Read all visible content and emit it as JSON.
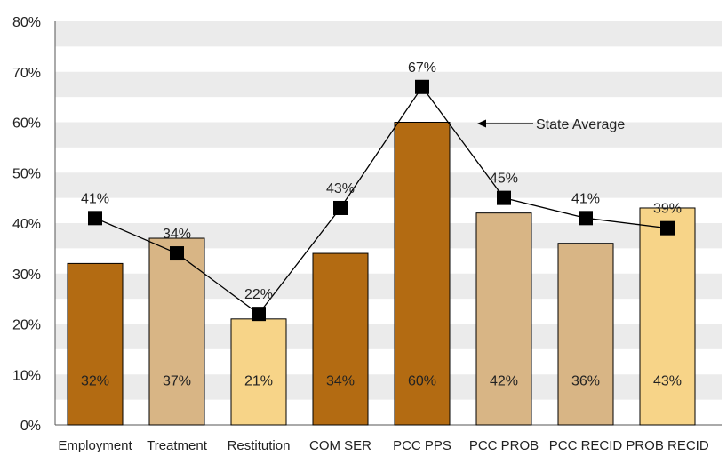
{
  "chart_data": {
    "type": "bar",
    "categories": [
      "Employment",
      "Treatment",
      "Restitution",
      "COM SER",
      "PCC PPS",
      "PCC PROB",
      "PCC RECID",
      "PROB RECID"
    ],
    "series": [
      {
        "type": "bar",
        "values": [
          32,
          37,
          21,
          34,
          60,
          42,
          36,
          43
        ],
        "labels": [
          "32%",
          "37%",
          "21%",
          "34%",
          "60%",
          "42%",
          "36%",
          "43%"
        ]
      },
      {
        "name": "State Average",
        "type": "line",
        "values": [
          41,
          34,
          22,
          43,
          67,
          45,
          41,
          39
        ],
        "labels": [
          "41%",
          "34%",
          "22%",
          "43%",
          "67%",
          "45%",
          "41%",
          "39%"
        ]
      }
    ],
    "bar_colors": [
      "#b36b12",
      "#d8b585",
      "#f7d488",
      "#b36b12",
      "#b36b12",
      "#d8b585",
      "#d8b585",
      "#f7d488"
    ],
    "ylim": [
      0,
      80
    ],
    "yticks": [
      "0%",
      "10%",
      "20%",
      "30%",
      "40%",
      "50%",
      "60%",
      "70%",
      "80%"
    ],
    "annotation": "State Average",
    "band_color": "#ebebeb",
    "marker_color": "#000000"
  }
}
